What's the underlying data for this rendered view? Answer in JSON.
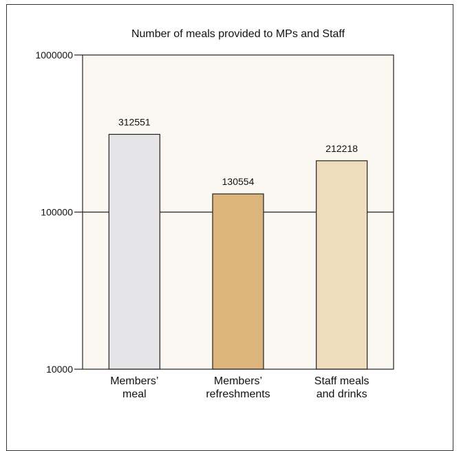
{
  "chart_data": {
    "type": "bar",
    "title": "Number of meals provided to MPs and Staff",
    "xlabel": "",
    "ylabel": "",
    "y_scale": "log",
    "ylim": [
      10000,
      1000000
    ],
    "y_ticks": [
      {
        "value": 10000,
        "label": "10000"
      },
      {
        "value": 100000,
        "label": "100000"
      },
      {
        "value": 1000000,
        "label": "1000000"
      }
    ],
    "grid": "major-y",
    "categories": [
      {
        "lines": [
          "Members’",
          "meal"
        ]
      },
      {
        "lines": [
          "Members’",
          "refreshments"
        ]
      },
      {
        "lines": [
          "Staff meals",
          "and drinks"
        ]
      }
    ],
    "values": [
      312551,
      130554,
      212218
    ],
    "value_labels": [
      "312551",
      "130554",
      "212218"
    ],
    "colors": {
      "plot_background": "#fbf8f1",
      "bars": [
        "#e5e5e7",
        "#dcb57c",
        "#efdcbc"
      ],
      "bar_stroke": "#222222",
      "axis": "#222222"
    }
  }
}
